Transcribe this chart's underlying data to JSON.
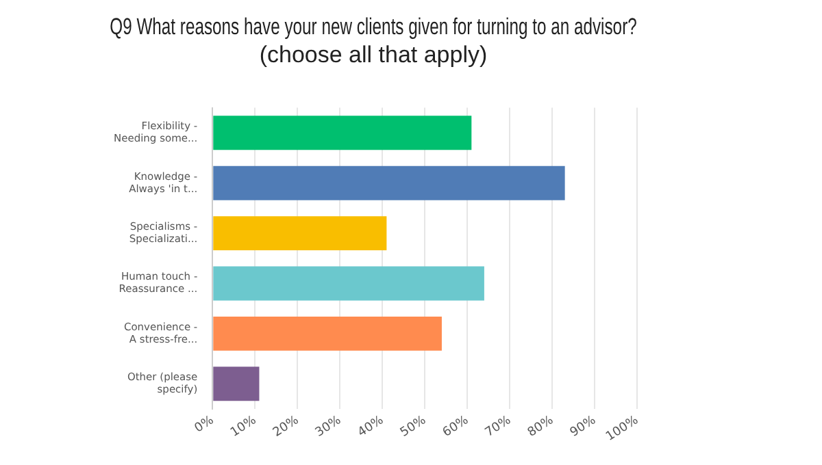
{
  "chart_data": {
    "type": "bar",
    "orientation": "horizontal",
    "title": "Q9 What reasons have your new clients given for turning to an advisor? (choose all that apply)",
    "categories": [
      "Flexibility -\nNeeding some...",
      "Knowledge -\nAlways 'in t...",
      "Specialisms -\nSpecializati...",
      "Human touch -\nReassurance ...",
      "Convenience -\nA stress-fre...",
      "Other (please\nspecify)"
    ],
    "values": [
      61,
      83,
      41,
      64,
      54,
      11
    ],
    "colors": [
      "#00bf6f",
      "#507cb6",
      "#f9be00",
      "#6bc8cd",
      "#ff8b4f",
      "#7d5e90"
    ],
    "xlim": [
      0,
      100
    ],
    "xticks": [
      {
        "value": 0,
        "label": "0%"
      },
      {
        "value": 10,
        "label": "10%"
      },
      {
        "value": 20,
        "label": "20%"
      },
      {
        "value": 30,
        "label": "30%"
      },
      {
        "value": 40,
        "label": "40%"
      },
      {
        "value": 50,
        "label": "50%"
      },
      {
        "value": 60,
        "label": "60%"
      },
      {
        "value": 70,
        "label": "70%"
      },
      {
        "value": 80,
        "label": "80%"
      },
      {
        "value": 90,
        "label": "90%"
      },
      {
        "value": 100,
        "label": "100%"
      }
    ],
    "grid": "x"
  }
}
